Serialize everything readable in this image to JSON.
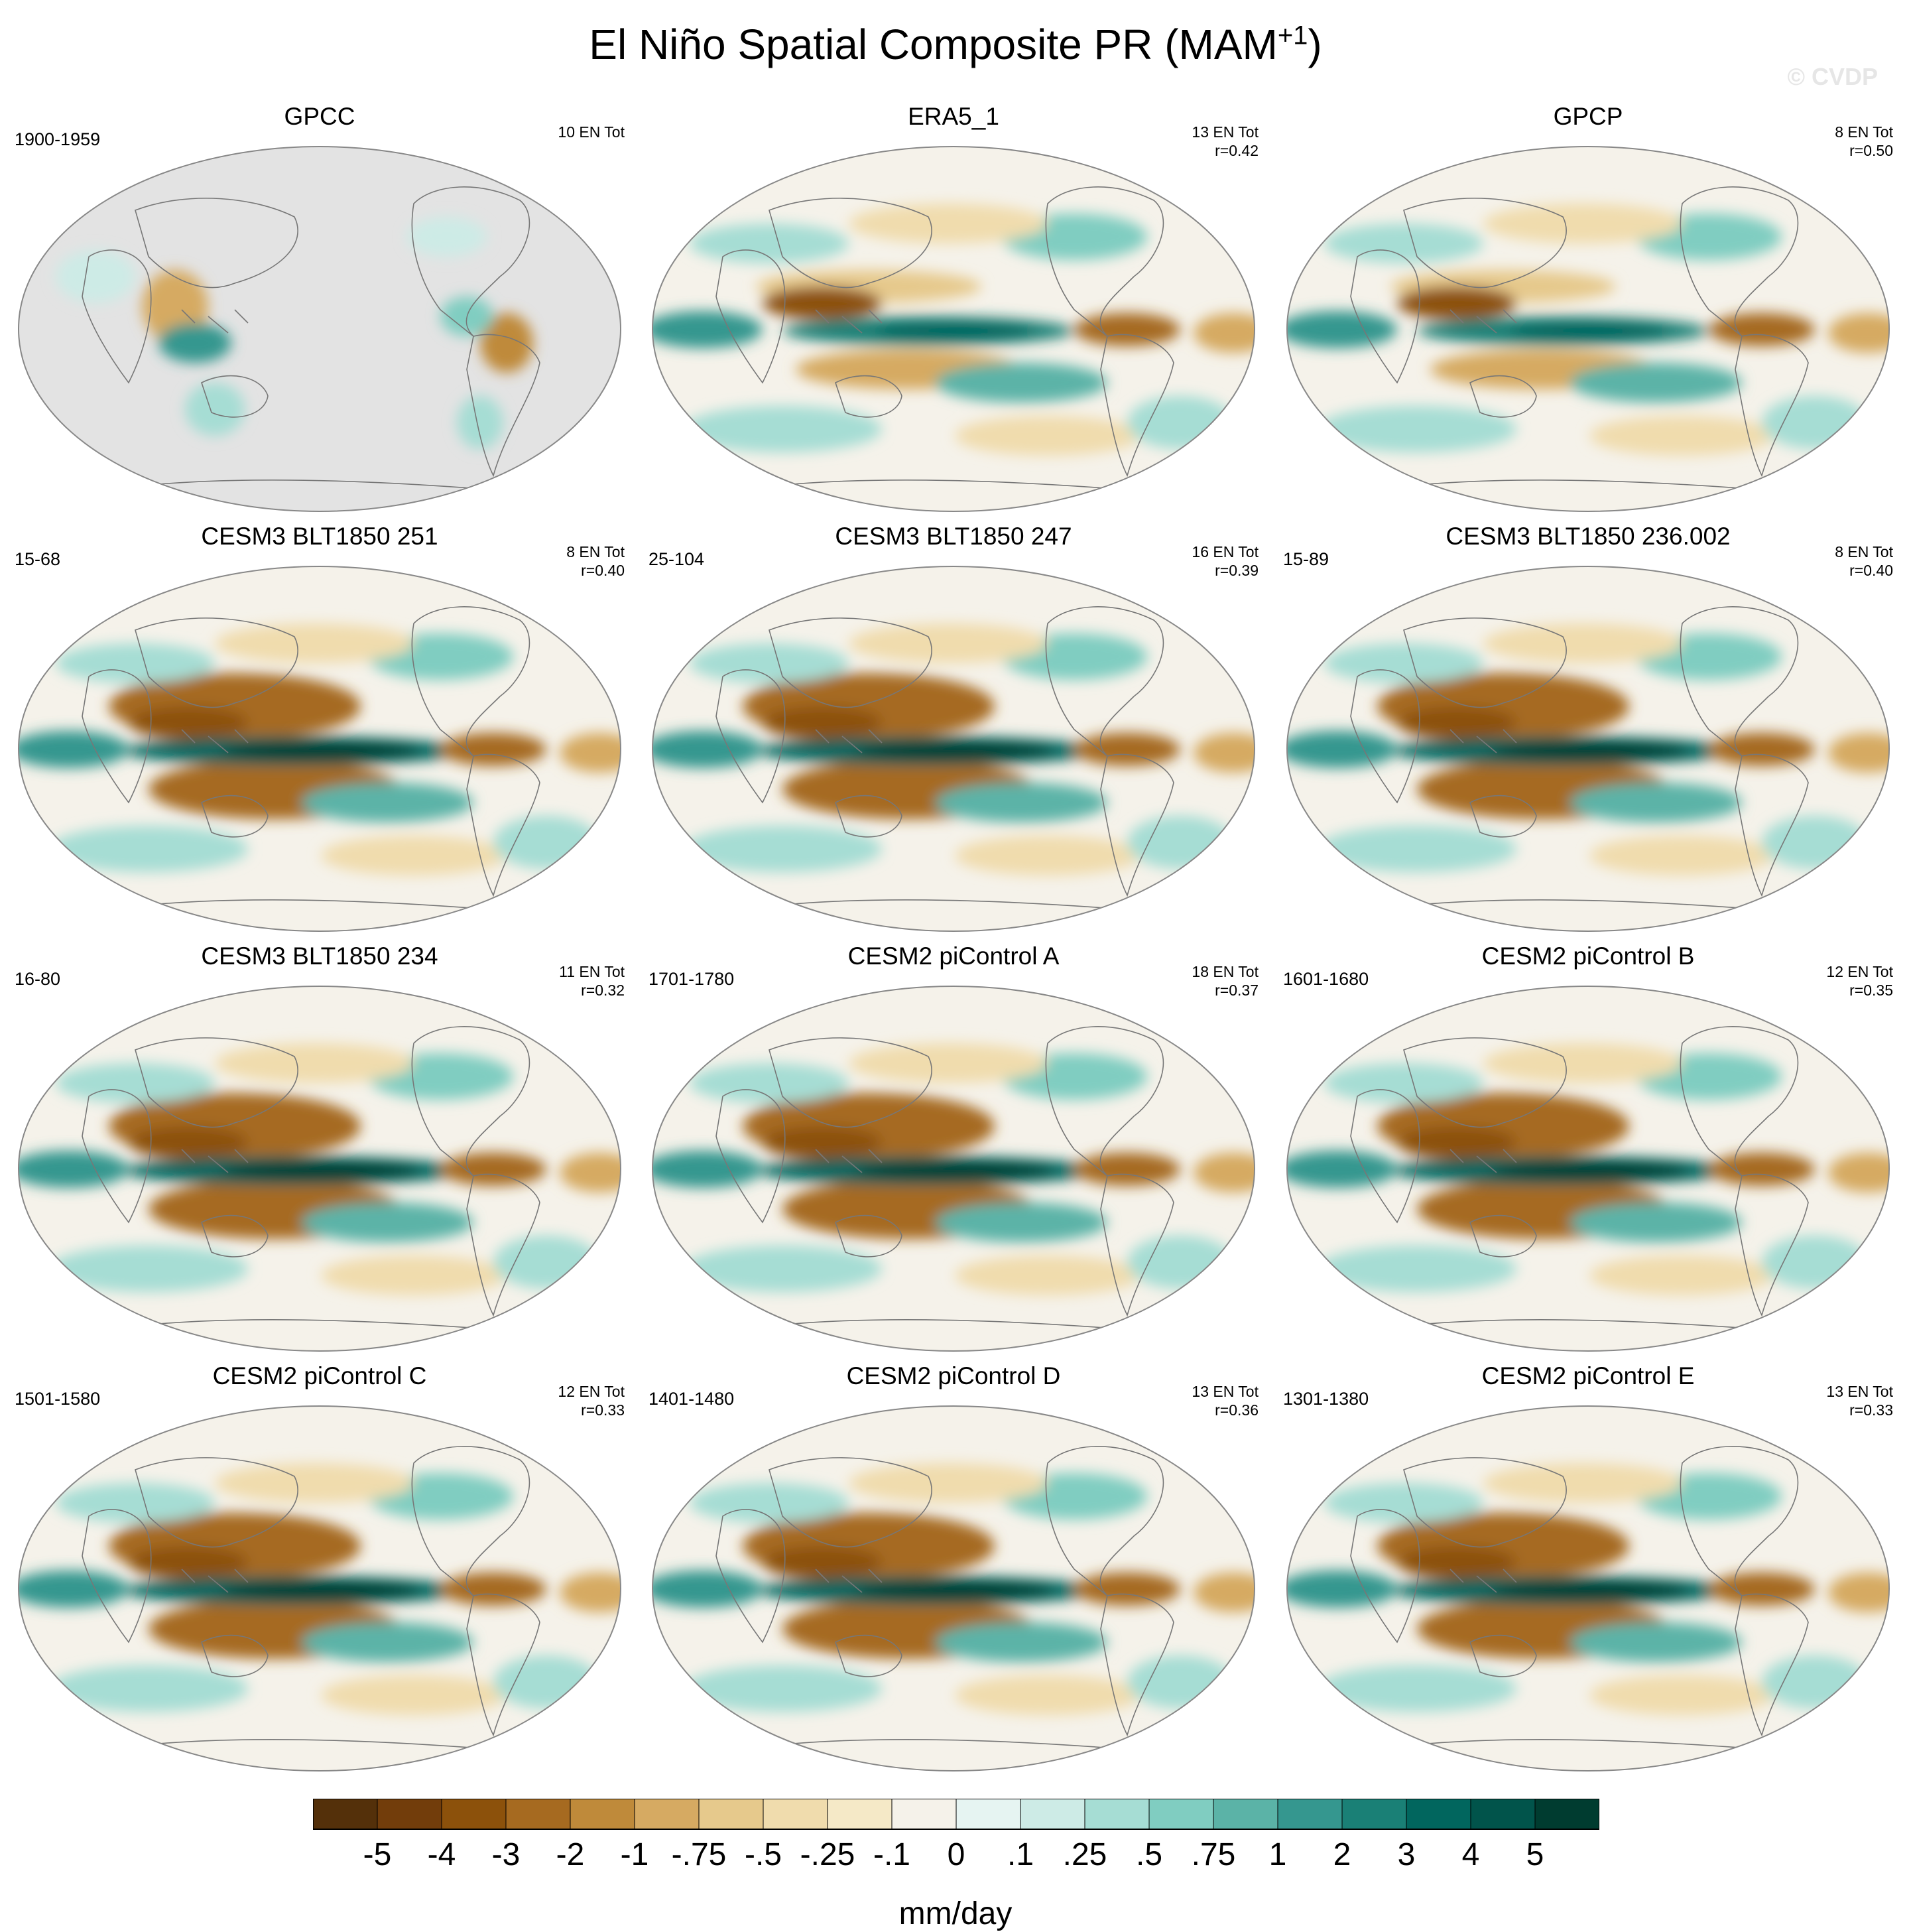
{
  "chart_data": {
    "type": "heatmap",
    "title": "El Niño Spatial Composite PR (MAM",
    "title_superscript": "+1",
    "title_suffix": ")",
    "watermark": "© CVDP",
    "colorbar": {
      "label": "mm/day",
      "ticks": [
        "-5",
        "-4",
        "-3",
        "-2",
        "-1",
        "-.75",
        "-.5",
        "-.25",
        "-.1",
        "0",
        ".1",
        ".25",
        ".5",
        ".75",
        "1",
        "2",
        "3",
        "4",
        "5"
      ],
      "colors": [
        "#54300a",
        "#723d0b",
        "#8c510b",
        "#a66a20",
        "#bf8a3a",
        "#d6aa62",
        "#e6c98c",
        "#f0dcad",
        "#f5e9c7",
        "#f5f2ea",
        "#e6f4f2",
        "#cdebe6",
        "#a6ddd4",
        "#80cdc1",
        "#5bb3a7",
        "#35978f",
        "#1a8076",
        "#01665e",
        "#01544b",
        "#003c30"
      ]
    },
    "panels": [
      {
        "name": "GPCC",
        "years": "1900-1959",
        "count": "10 EN Tot",
        "r": "",
        "masked": true
      },
      {
        "name": "ERA5_1",
        "years": "",
        "count": "13 EN Tot",
        "r": "r=0.42",
        "masked": false
      },
      {
        "name": "GPCP",
        "years": "",
        "count": "8 EN Tot",
        "r": "r=0.50",
        "masked": false
      },
      {
        "name": "CESM3 BLT1850 251",
        "years": "15-68",
        "count": "8 EN Tot",
        "r": "r=0.40",
        "masked": false
      },
      {
        "name": "CESM3 BLT1850 247",
        "years": "25-104",
        "count": "16 EN Tot",
        "r": "r=0.39",
        "masked": false
      },
      {
        "name": "CESM3 BLT1850 236.002",
        "years": "15-89",
        "count": "8 EN Tot",
        "r": "r=0.40",
        "masked": false
      },
      {
        "name": "CESM3 BLT1850 234",
        "years": "16-80",
        "count": "11 EN Tot",
        "r": "r=0.32",
        "masked": false
      },
      {
        "name": "CESM2 piControl A",
        "years": "1701-1780",
        "count": "18 EN Tot",
        "r": "r=0.37",
        "masked": false
      },
      {
        "name": "CESM2 piControl B",
        "years": "1601-1680",
        "count": "12 EN Tot",
        "r": "r=0.35",
        "masked": false
      },
      {
        "name": "CESM2 piControl C",
        "years": "1501-1580",
        "count": "12 EN Tot",
        "r": "r=0.33",
        "masked": false
      },
      {
        "name": "CESM2 piControl D",
        "years": "1401-1480",
        "count": "13 EN Tot",
        "r": "r=0.36",
        "masked": false
      },
      {
        "name": "CESM2 piControl E",
        "years": "1301-1380",
        "count": "13 EN Tot",
        "r": "r=0.33",
        "masked": false
      }
    ]
  }
}
